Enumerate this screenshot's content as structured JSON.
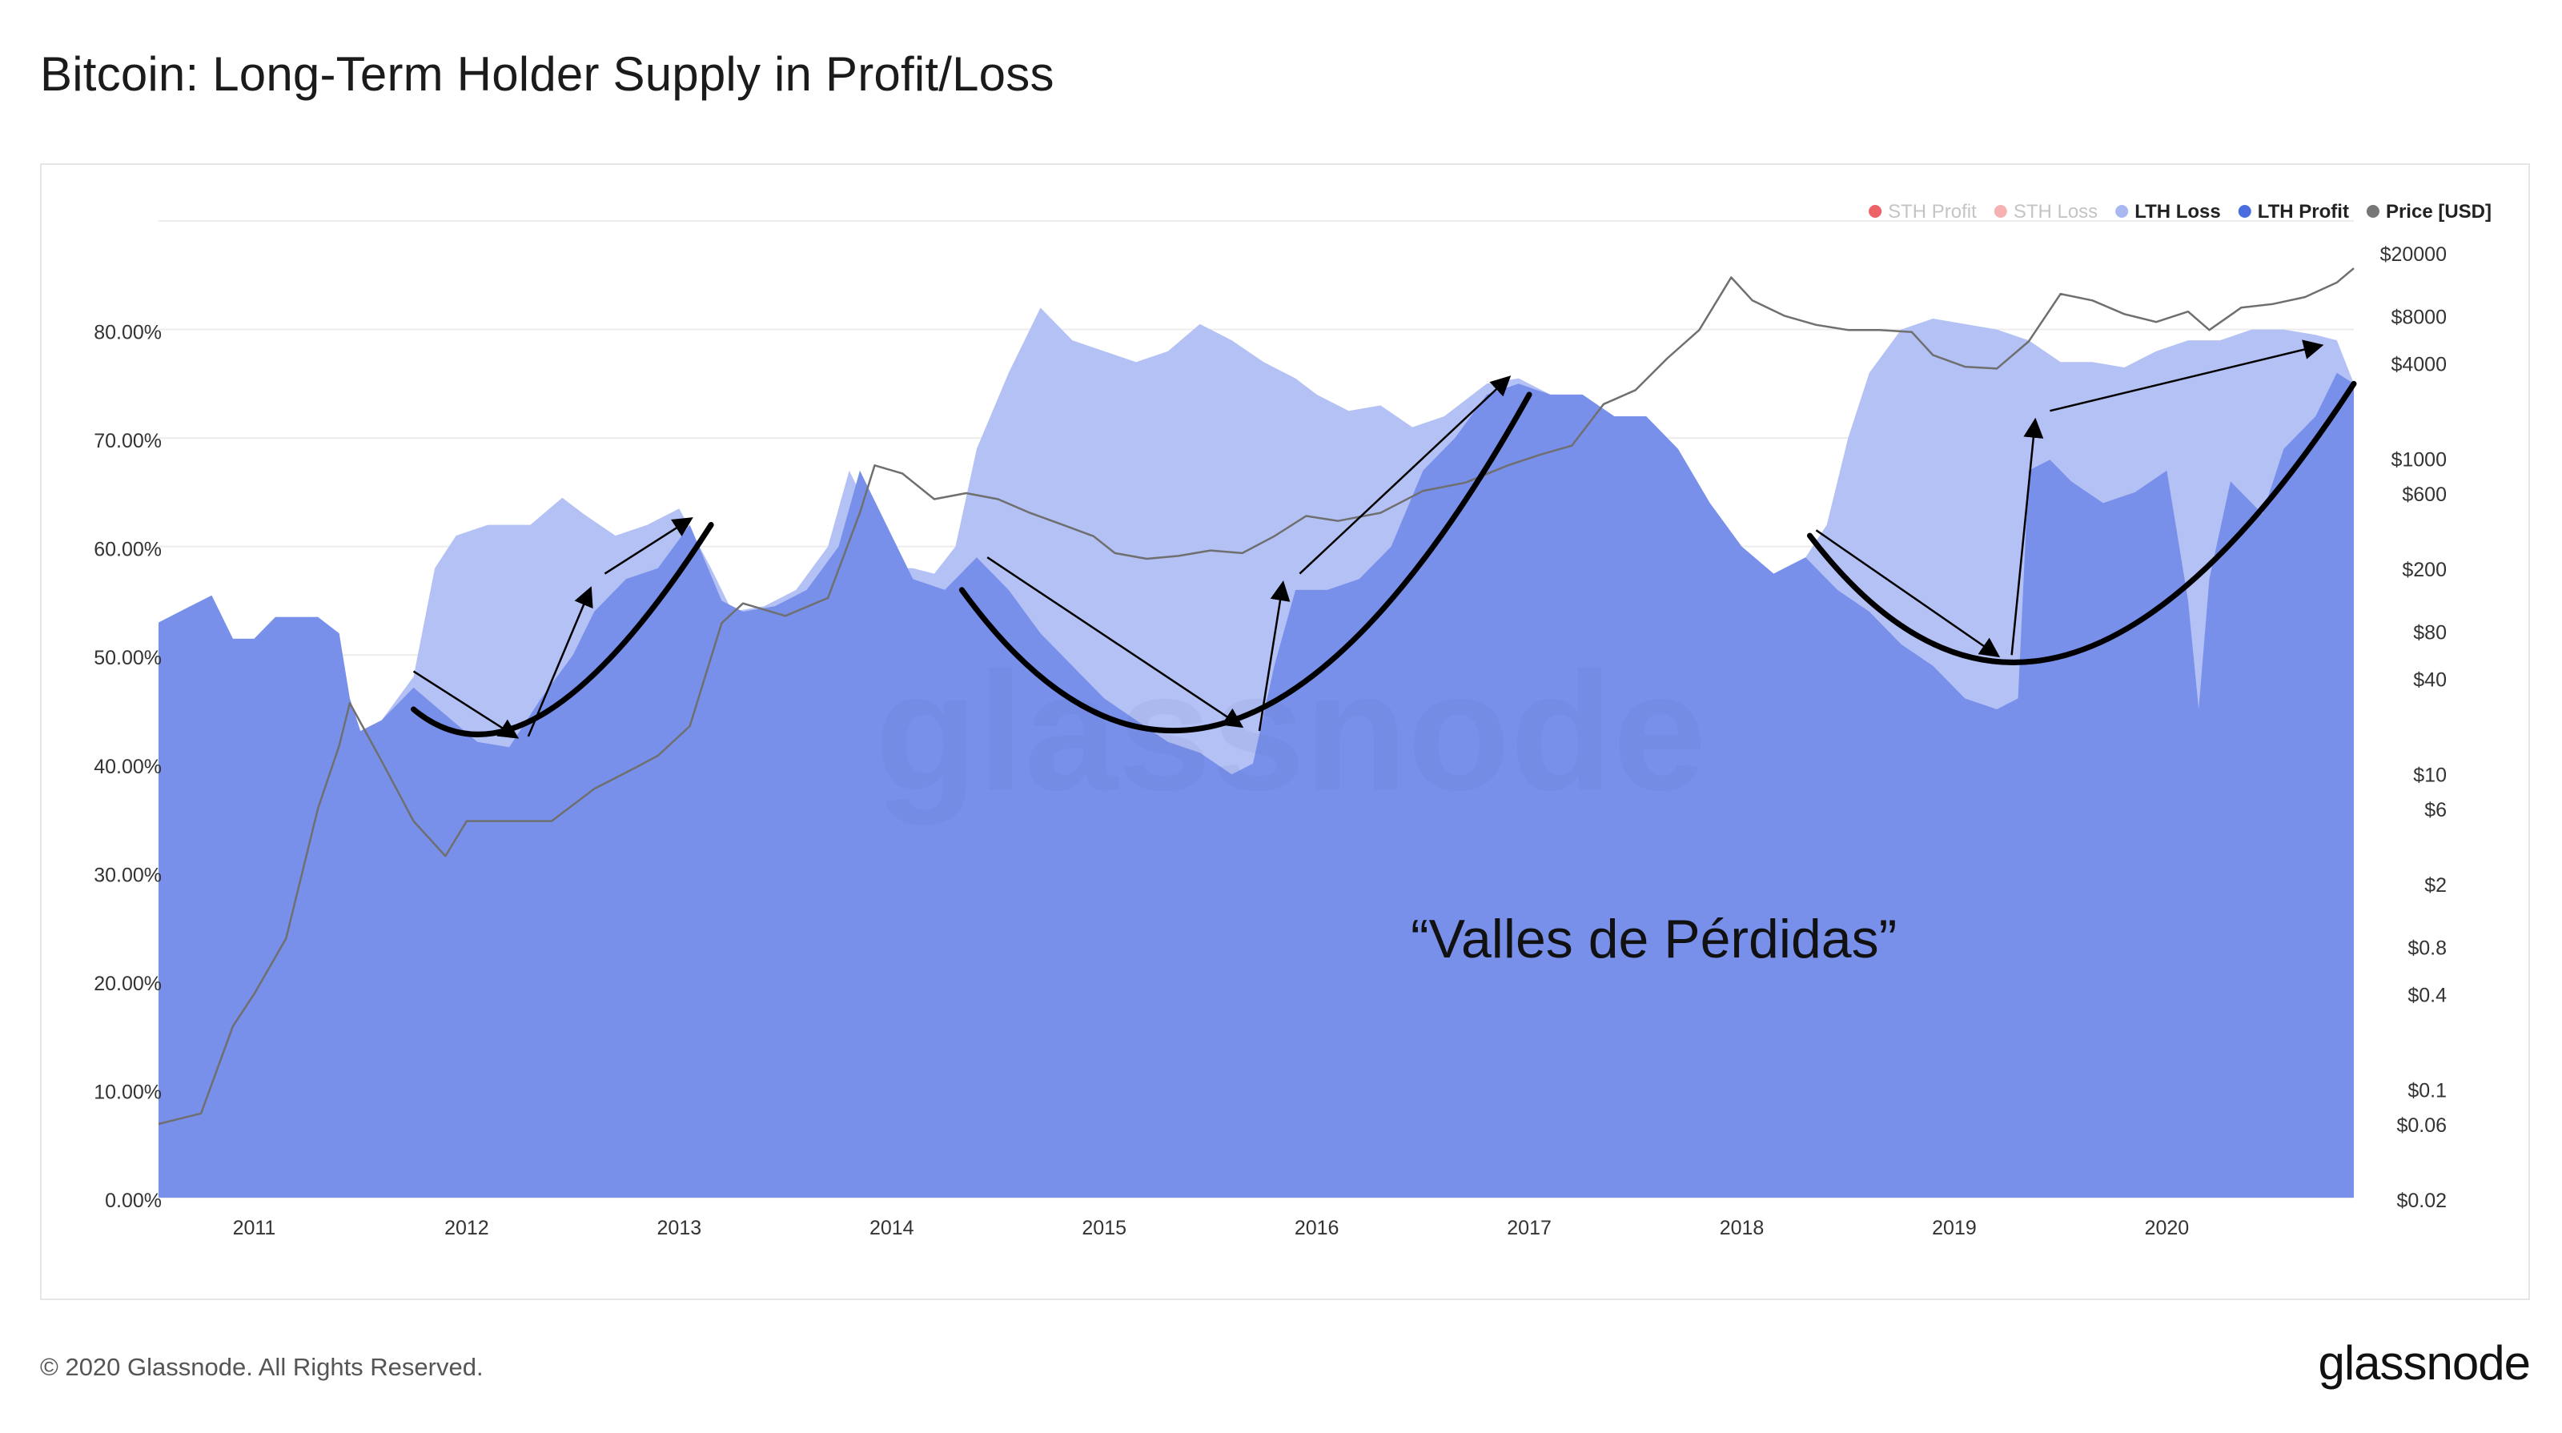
{
  "title": "Bitcoin: Long-Term Holder Supply in Profit/Loss",
  "footer": {
    "copyright": "© 2020 Glassnode. All Rights Reserved.",
    "logo_text": "glassnode"
  },
  "watermark": "glassnode",
  "annotation": "“Valles de Pérdidas”",
  "colors": {
    "sth_profit": "#e8484b",
    "sth_loss": "#f4a4a6",
    "lth_loss": "#b4c1f5",
    "lth_profit": "#7890ea",
    "price": "#6f6f6f",
    "grid": "#ececec",
    "arrows": "#000000"
  },
  "chart_data": {
    "type": "area",
    "x_ticks": [
      "2011",
      "2012",
      "2013",
      "2014",
      "2015",
      "2016",
      "2017",
      "2018",
      "2019",
      "2020"
    ],
    "x_range": [
      2010.55,
      2020.88
    ],
    "y_left": {
      "range": [
        0,
        90
      ],
      "ticks": [
        0,
        10,
        20,
        30,
        40,
        50,
        60,
        70,
        80
      ],
      "tick_labels": [
        "0.00%",
        "10.00%",
        "20.00%",
        "30.00%",
        "40.00%",
        "50.00%",
        "60.00%",
        "70.00%",
        "80.00%"
      ]
    },
    "y_right": {
      "scale": "log",
      "range": [
        0.02,
        20000
      ],
      "ticks": [
        20000,
        8000,
        4000,
        1000,
        600,
        200,
        80,
        40,
        10,
        6,
        2,
        0.8,
        0.4,
        0.1,
        0.06,
        0.02
      ],
      "tick_labels": [
        "$20000",
        "$8000",
        "$4000",
        "$1000",
        "$600",
        "$200",
        "$80",
        "$40",
        "$10",
        "$6",
        "$2",
        "$0.8",
        "$0.4",
        "$0.1",
        "$0.06",
        "$0.02"
      ]
    },
    "legend": [
      {
        "name": "STH Profit",
        "color": "#e8484b",
        "muted": true
      },
      {
        "name": "STH Loss",
        "color": "#f4a4a6",
        "muted": true
      },
      {
        "name": "LTH Loss",
        "color": "#a9b8f3",
        "muted": false
      },
      {
        "name": "LTH Profit",
        "color": "#4a6ee0",
        "muted": false
      },
      {
        "name": "Price [USD]",
        "color": "#777777",
        "muted": false
      }
    ],
    "legend_placement": "top-right",
    "series": [
      {
        "name": "LTH Loss",
        "x": [
          2010.55,
          2010.7,
          2010.8,
          2010.9,
          2011.0,
          2011.1,
          2011.3,
          2011.4,
          2011.45,
          2011.5,
          2011.6,
          2011.75,
          2011.85,
          2011.95,
          2012.1,
          2012.3,
          2012.45,
          2012.55,
          2012.7,
          2012.85,
          2013.0,
          2013.15,
          2013.25,
          2013.4,
          2013.55,
          2013.7,
          2013.8,
          2013.9,
          2014.0,
          2014.1,
          2014.2,
          2014.3,
          2014.4,
          2014.55,
          2014.7,
          2014.85,
          2015.0,
          2015.15,
          2015.3,
          2015.45,
          2015.6,
          2015.75,
          2015.9,
          2016.0,
          2016.15,
          2016.3,
          2016.45,
          2016.6,
          2016.8,
          2016.95,
          2017.1,
          2017.25,
          2017.4,
          2017.55,
          2017.7,
          2017.85,
          2018.0,
          2018.15,
          2018.3,
          2018.4,
          2018.5,
          2018.6,
          2018.75,
          2018.9,
          2019.05,
          2019.2,
          2019.35,
          2019.5,
          2019.65,
          2019.8,
          2019.95,
          2020.1,
          2020.25,
          2020.4,
          2020.55,
          2020.7,
          2020.8,
          2020.88
        ],
        "y": [
          53,
          54.5,
          55.5,
          51.5,
          51.5,
          53.5,
          53.5,
          52,
          46,
          43,
          44,
          48,
          58,
          61,
          62,
          62,
          64.5,
          63,
          61,
          62,
          63.5,
          58,
          54,
          54.5,
          56,
          60,
          67,
          63,
          58,
          58,
          57.5,
          60,
          69,
          76,
          82,
          79,
          78,
          77,
          78,
          80.5,
          79,
          77,
          75.5,
          74,
          72.5,
          73,
          71,
          72,
          75,
          75.5,
          74,
          74,
          72,
          72,
          69,
          64,
          60,
          57.5,
          59,
          62,
          70,
          76,
          80,
          81,
          80.5,
          80,
          79,
          77,
          77,
          76.5,
          78,
          79,
          79,
          80,
          80,
          79.5,
          79,
          75
        ]
      },
      {
        "name": "LTH Profit",
        "x": [
          2010.55,
          2010.7,
          2010.8,
          2010.9,
          2011.0,
          2011.1,
          2011.3,
          2011.4,
          2011.45,
          2011.5,
          2011.6,
          2011.75,
          2011.9,
          2012.05,
          2012.2,
          2012.35,
          2012.5,
          2012.6,
          2012.75,
          2012.9,
          2013.05,
          2013.2,
          2013.3,
          2013.45,
          2013.6,
          2013.75,
          2013.85,
          2013.95,
          2014.1,
          2014.25,
          2014.4,
          2014.55,
          2014.7,
          2014.85,
          2015.0,
          2015.15,
          2015.3,
          2015.45,
          2015.6,
          2015.7,
          2015.8,
          2015.9,
          2016.05,
          2016.2,
          2016.35,
          2016.5,
          2016.65,
          2016.8,
          2016.95,
          2017.1,
          2017.25,
          2017.4,
          2017.55,
          2017.7,
          2017.85,
          2018.0,
          2018.15,
          2018.3,
          2018.45,
          2018.6,
          2018.75,
          2018.9,
          2019.05,
          2019.2,
          2019.3,
          2019.35,
          2019.45,
          2019.55,
          2019.7,
          2019.85,
          2020.0,
          2020.1,
          2020.15,
          2020.2,
          2020.3,
          2020.45,
          2020.55,
          2020.7,
          2020.8,
          2020.88
        ],
        "y": [
          53,
          54.5,
          55.5,
          51.5,
          51.5,
          53.5,
          53.5,
          52,
          46,
          43,
          44,
          47,
          44.5,
          42,
          41.5,
          46,
          50,
          54,
          57,
          58,
          62,
          55,
          54,
          54.5,
          56,
          60,
          67,
          63,
          57,
          56,
          59,
          56,
          52,
          49,
          46,
          44,
          42,
          41,
          39,
          40,
          49,
          56,
          56,
          57,
          60,
          67,
          70,
          74,
          75,
          74,
          74,
          72,
          72,
          69,
          64,
          60,
          57.5,
          59,
          56,
          54,
          51,
          49,
          46,
          45,
          46,
          67,
          68,
          66,
          64,
          65,
          67,
          55,
          45,
          57,
          66,
          63,
          69,
          72,
          76,
          75
        ]
      },
      {
        "name": "Price [USD]",
        "x": [
          2010.55,
          2010.75,
          2010.9,
          2011.0,
          2011.15,
          2011.3,
          2011.4,
          2011.45,
          2011.6,
          2011.75,
          2011.9,
          2012.0,
          2012.2,
          2012.4,
          2012.6,
          2012.8,
          2012.9,
          2013.05,
          2013.2,
          2013.3,
          2013.5,
          2013.7,
          2013.85,
          2013.92,
          2014.05,
          2014.2,
          2014.35,
          2014.5,
          2014.65,
          2014.8,
          2014.95,
          2015.05,
          2015.2,
          2015.35,
          2015.5,
          2015.65,
          2015.8,
          2015.95,
          2016.1,
          2016.3,
          2016.5,
          2016.7,
          2016.9,
          2017.05,
          2017.2,
          2017.35,
          2017.5,
          2017.65,
          2017.8,
          2017.95,
          2018.05,
          2018.2,
          2018.35,
          2018.5,
          2018.65,
          2018.8,
          2018.9,
          2019.05,
          2019.2,
          2019.35,
          2019.5,
          2019.65,
          2019.8,
          2019.95,
          2020.1,
          2020.2,
          2020.35,
          2020.5,
          2020.65,
          2020.8,
          2020.88
        ],
        "y": [
          0.06,
          0.07,
          0.25,
          0.4,
          0.9,
          6,
          15,
          28,
          12,
          5,
          3,
          5,
          5,
          5,
          8,
          11,
          13,
          20,
          90,
          120,
          100,
          130,
          450,
          900,
          800,
          550,
          600,
          550,
          450,
          380,
          320,
          250,
          230,
          240,
          260,
          250,
          320,
          430,
          400,
          450,
          620,
          700,
          900,
          1050,
          1200,
          2200,
          2700,
          4300,
          6500,
          14000,
          10000,
          8000,
          7000,
          6500,
          6500,
          6300,
          4500,
          3800,
          3700,
          5500,
          11000,
          10000,
          8200,
          7300,
          8500,
          6500,
          9000,
          9500,
          10500,
          13000,
          16000
        ]
      }
    ],
    "annotations": [
      "“Valles de Pérdidas”"
    ]
  }
}
